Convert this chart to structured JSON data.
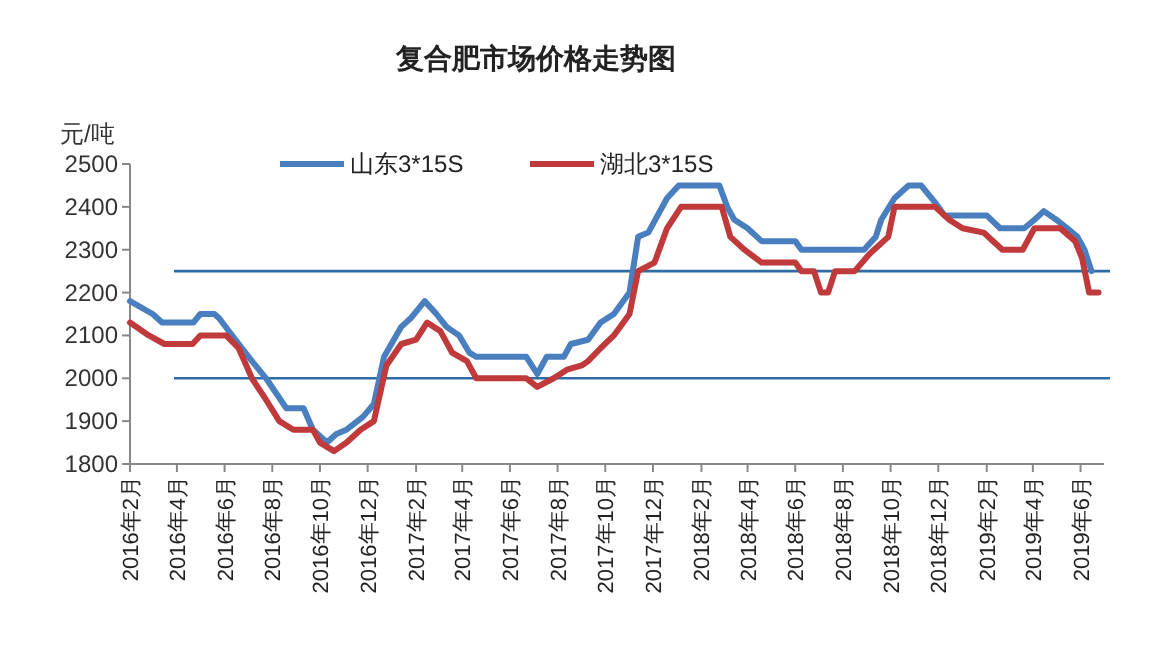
{
  "chart_data": {
    "type": "line",
    "title": "复合肥市场价格走势图",
    "ylabel": "元/吨",
    "xlim": [
      "2016-02-01",
      "2019-07-01"
    ],
    "xticks": [
      {
        "value": "2016-02",
        "label": "2016年2月"
      },
      {
        "value": "2016-04",
        "label": "2016年4月"
      },
      {
        "value": "2016-06",
        "label": "2016年6月"
      },
      {
        "value": "2016-08",
        "label": "2016年8月"
      },
      {
        "value": "2016-10",
        "label": "2016年10月"
      },
      {
        "value": "2016-12",
        "label": "2016年12月"
      },
      {
        "value": "2017-02",
        "label": "2017年2月"
      },
      {
        "value": "2017-04",
        "label": "2017年4月"
      },
      {
        "value": "2017-06",
        "label": "2017年6月"
      },
      {
        "value": "2017-08",
        "label": "2017年8月"
      },
      {
        "value": "2017-10",
        "label": "2017年10月"
      },
      {
        "value": "2017-12",
        "label": "2017年12月"
      },
      {
        "value": "2018-02",
        "label": "2018年2月"
      },
      {
        "value": "2018-04",
        "label": "2018年4月"
      },
      {
        "value": "2018-06",
        "label": "2018年6月"
      },
      {
        "value": "2018-08",
        "label": "2018年8月"
      },
      {
        "value": "2018-10",
        "label": "2018年10月"
      },
      {
        "value": "2018-12",
        "label": "2018年12月"
      },
      {
        "value": "2019-02",
        "label": "2019年2月"
      },
      {
        "value": "2019-04",
        "label": "2019年4月"
      },
      {
        "value": "2019-06",
        "label": "2019年6月"
      }
    ],
    "ylim": [
      1800,
      2500
    ],
    "yticks": [
      1800,
      1900,
      2000,
      2100,
      2200,
      2300,
      2400,
      2500
    ],
    "legend": "top",
    "ref_lines": [
      {
        "axis": "y",
        "value": 2250,
        "color": "#2e6da4"
      },
      {
        "axis": "y",
        "value": 2000,
        "color": "#2e6da4"
      }
    ],
    "series": [
      {
        "name": "山东3*15S",
        "color": "#4a7fbf",
        "x": [
          "2016-02-01",
          "2016-03-01",
          "2016-03-13",
          "2016-04-22",
          "2016-05-01",
          "2016-05-19",
          "2016-05-25",
          "2016-06-19",
          "2016-07-06",
          "2016-07-24",
          "2016-08-19",
          "2016-09-10",
          "2016-09-22",
          "2016-10-10",
          "2016-10-22",
          "2016-11-04",
          "2016-11-25",
          "2016-12-09",
          "2016-12-22",
          "2017-01-13",
          "2017-01-25",
          "2017-02-12",
          "2017-02-27",
          "2017-03-12",
          "2017-03-28",
          "2017-04-10",
          "2017-04-19",
          "2017-06-22",
          "2017-07-06",
          "2017-07-18",
          "2017-08-09",
          "2017-08-18",
          "2017-09-09",
          "2017-09-25",
          "2017-10-12",
          "2017-11-01",
          "2017-11-12",
          "2017-11-25",
          "2017-12-19",
          "2018-01-03",
          "2018-02-24",
          "2018-03-06",
          "2018-03-15",
          "2018-04-01",
          "2018-04-19",
          "2018-06-01",
          "2018-06-09",
          "2018-08-28",
          "2018-09-12",
          "2018-09-19",
          "2018-10-06",
          "2018-10-24",
          "2018-11-09",
          "2018-11-27",
          "2018-12-09",
          "2019-02-01",
          "2019-02-18",
          "2019-03-21",
          "2019-04-03",
          "2019-04-15",
          "2019-05-01",
          "2019-05-15",
          "2019-05-28",
          "2019-06-06",
          "2019-06-15"
        ],
        "values": [
          2180,
          2150,
          2130,
          2130,
          2150,
          2150,
          2140,
          2080,
          2040,
          2000,
          1930,
          1930,
          1880,
          1850,
          1870,
          1880,
          1910,
          1940,
          2050,
          2120,
          2140,
          2180,
          2150,
          2120,
          2100,
          2060,
          2050,
          2050,
          2010,
          2050,
          2050,
          2080,
          2090,
          2130,
          2150,
          2200,
          2330,
          2340,
          2420,
          2450,
          2450,
          2400,
          2370,
          2350,
          2320,
          2320,
          2300,
          2300,
          2330,
          2370,
          2420,
          2450,
          2450,
          2410,
          2380,
          2380,
          2350,
          2350,
          2370,
          2390,
          2370,
          2350,
          2330,
          2300,
          2250
        ]
      },
      {
        "name": "湖北3*15S",
        "color": "#c0393b",
        "x": [
          "2016-02-01",
          "2016-02-25",
          "2016-03-16",
          "2016-04-21",
          "2016-05-01",
          "2016-06-03",
          "2016-06-19",
          "2016-07-06",
          "2016-07-24",
          "2016-08-10",
          "2016-08-28",
          "2016-09-22",
          "2016-10-01",
          "2016-10-19",
          "2016-11-04",
          "2016-11-22",
          "2016-12-09",
          "2016-12-25",
          "2017-01-13",
          "2017-02-01",
          "2017-02-15",
          "2017-03-04",
          "2017-03-19",
          "2017-04-07",
          "2017-04-19",
          "2017-06-22",
          "2017-07-06",
          "2017-07-27",
          "2017-08-13",
          "2017-09-01",
          "2017-09-09",
          "2017-09-25",
          "2017-10-12",
          "2017-11-01",
          "2017-11-12",
          "2017-12-03",
          "2017-12-19",
          "2018-01-06",
          "2018-02-27",
          "2018-03-10",
          "2018-03-28",
          "2018-04-19",
          "2018-06-01",
          "2018-06-09",
          "2018-06-25",
          "2018-07-04",
          "2018-07-13",
          "2018-07-22",
          "2018-08-16",
          "2018-09-04",
          "2018-09-28",
          "2018-10-06",
          "2018-11-27",
          "2018-12-15",
          "2019-01-01",
          "2019-01-28",
          "2019-02-21",
          "2019-03-19",
          "2019-04-03",
          "2019-05-06",
          "2019-05-25",
          "2019-06-03",
          "2019-06-12",
          "2019-06-24"
        ],
        "values": [
          2130,
          2100,
          2080,
          2080,
          2100,
          2100,
          2070,
          2000,
          1950,
          1900,
          1880,
          1880,
          1850,
          1830,
          1850,
          1880,
          1900,
          2030,
          2080,
          2090,
          2130,
          2110,
          2060,
          2040,
          2000,
          2000,
          1980,
          2000,
          2020,
          2030,
          2040,
          2070,
          2100,
          2150,
          2250,
          2270,
          2350,
          2400,
          2400,
          2330,
          2300,
          2270,
          2270,
          2250,
          2250,
          2200,
          2200,
          2250,
          2250,
          2290,
          2330,
          2400,
          2400,
          2370,
          2350,
          2340,
          2300,
          2300,
          2350,
          2350,
          2320,
          2280,
          2200,
          2200
        ]
      }
    ]
  }
}
